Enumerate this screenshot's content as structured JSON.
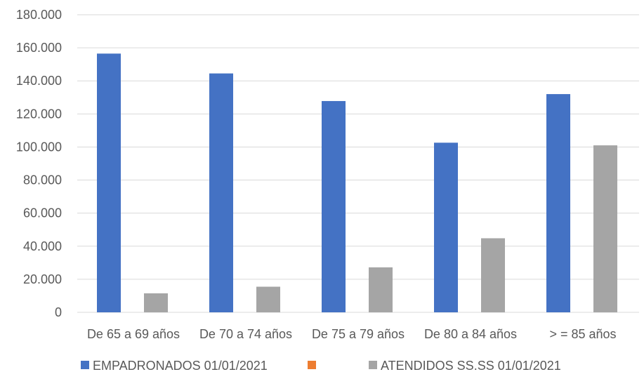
{
  "chart_data": {
    "type": "bar",
    "title": "",
    "xlabel": "",
    "ylabel": "",
    "ylim": [
      0,
      180000
    ],
    "yticks": [
      0,
      20000,
      40000,
      60000,
      80000,
      100000,
      120000,
      140000,
      160000,
      180000
    ],
    "ytick_labels": [
      "0",
      "20.000",
      "40.000",
      "60.000",
      "80.000",
      "100.000",
      "120.000",
      "140.000",
      "160.000",
      "180.000"
    ],
    "grid": true,
    "legend_position": "bottom",
    "categories": [
      "De 65 a 69 años",
      "De 70 a 74 años",
      "De 75 a 79 años",
      "De 80 a 84 años",
      "> = 85 años"
    ],
    "series": [
      {
        "name": "EMPADRONADOS 01/01/2021",
        "color": "#4472C4",
        "values": [
          156500,
          144500,
          127800,
          102600,
          132000
        ]
      },
      {
        "name": "",
        "color": "#ED7D31",
        "values": [
          null,
          null,
          null,
          null,
          null
        ]
      },
      {
        "name": "ATENDIDOS SS.SS 01/01/2021",
        "color": "#A5A5A5",
        "values": [
          11500,
          15500,
          27200,
          44800,
          101000
        ]
      }
    ],
    "gridline_color": "#D9D9D9",
    "axis_color": "#D9D9D9"
  }
}
